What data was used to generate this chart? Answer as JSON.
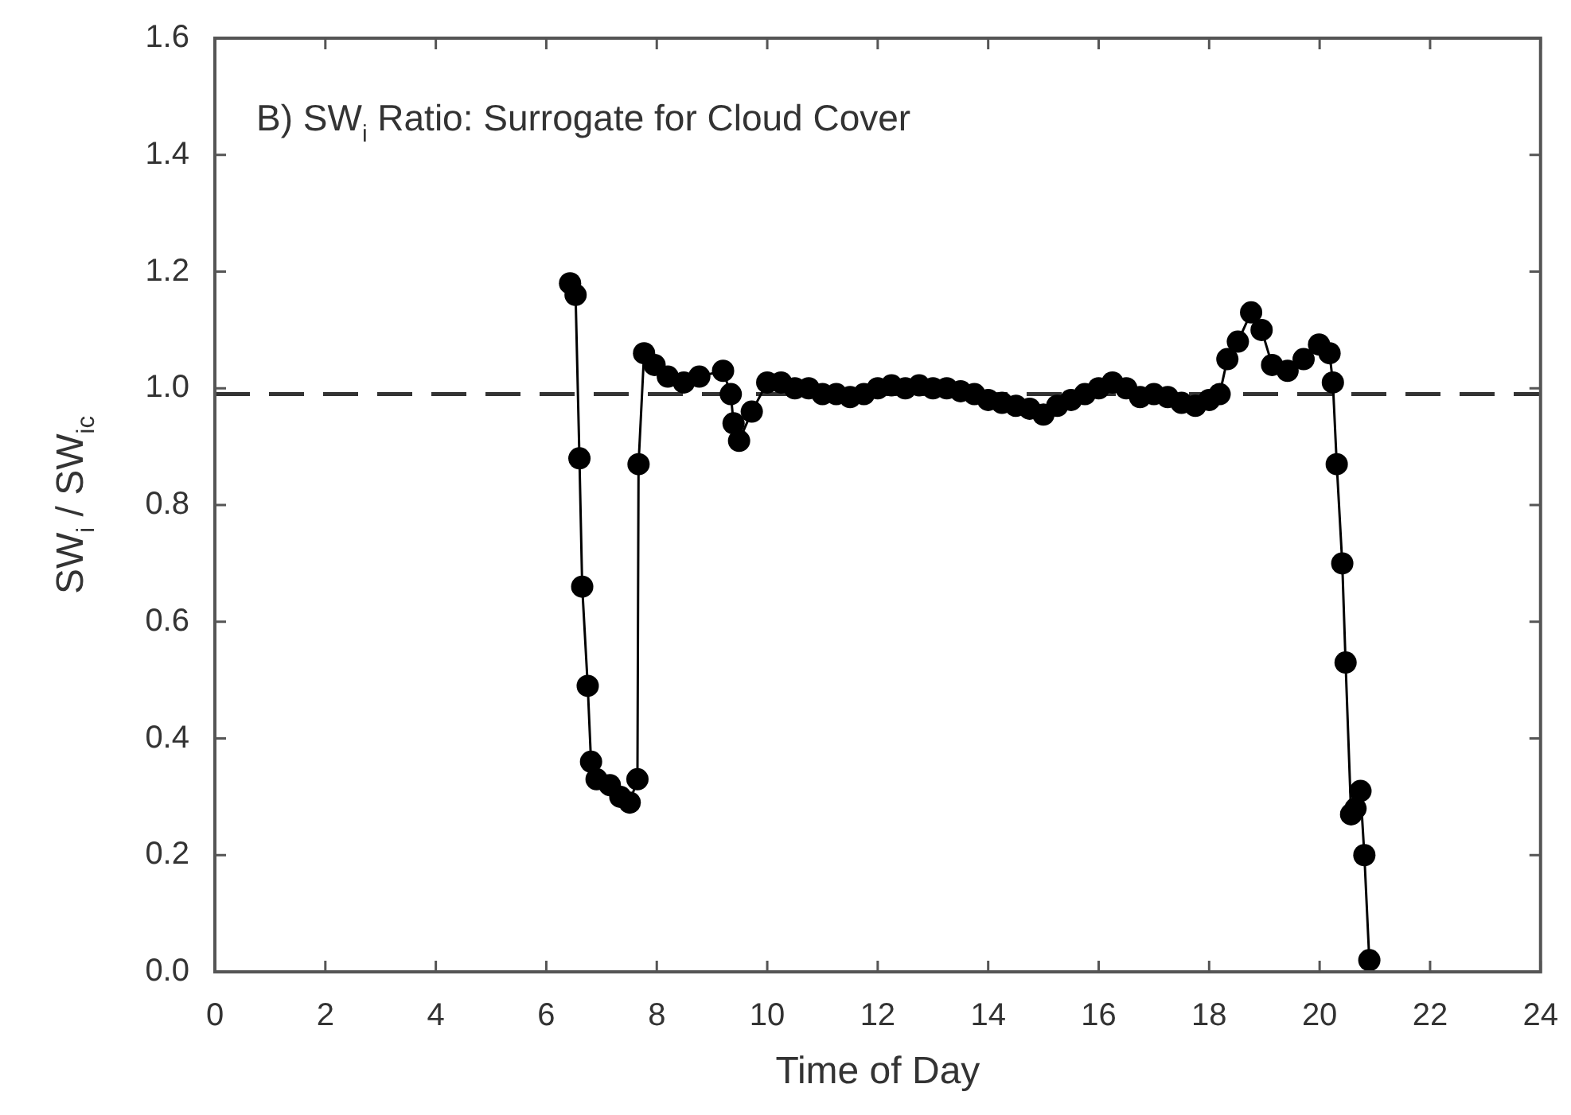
{
  "chart_data": {
    "type": "line",
    "title": "B) SW$_{i}$ Ratio: Surrogate for Cloud Cover",
    "xlabel": "Time of Day",
    "ylabel": "SW$_{i}$ / SW$_{ic}$",
    "xlim": [
      0,
      24
    ],
    "xticks": [
      0,
      2,
      4,
      6,
      8,
      10,
      12,
      14,
      16,
      18,
      20,
      22,
      24
    ],
    "ylim": [
      0,
      1.6
    ],
    "yticks": [
      {
        "value": 0,
        "label": "0.0"
      },
      {
        "value": 0.2,
        "label": "0.2"
      },
      {
        "value": 0.4,
        "label": "0.4"
      },
      {
        "value": 0.6,
        "label": "0.6"
      },
      {
        "value": 0.8,
        "label": "0.8"
      },
      {
        "value": 1,
        "label": "1.0"
      },
      {
        "value": 1.2,
        "label": "1.2"
      },
      {
        "value": 1.4,
        "label": "1.4"
      },
      {
        "value": 1.6,
        "label": "1.6"
      }
    ],
    "marker": "circle",
    "line_style": "solid",
    "legend": false,
    "ref_lines": [
      {
        "axis": "y",
        "value": 0.99,
        "color": "#333333",
        "line_style": "dashed"
      }
    ],
    "series": [
      {
        "color": "#000000",
        "x": [
          6.43,
          6.53,
          6.6,
          6.65,
          6.75,
          6.81,
          6.91,
          7.15,
          7.34,
          7.51,
          7.65,
          7.67,
          7.77,
          7.96,
          8.2,
          8.49,
          8.77,
          9.2,
          9.34,
          9.39,
          9.49,
          9.72,
          10.0,
          10.25,
          10.5,
          10.75,
          11.0,
          11.25,
          11.5,
          11.75,
          12.0,
          12.25,
          12.5,
          12.75,
          13.0,
          13.25,
          13.5,
          13.75,
          14.0,
          14.25,
          14.5,
          14.75,
          15.0,
          15.25,
          15.5,
          15.75,
          16.0,
          16.25,
          16.5,
          16.75,
          17.0,
          17.25,
          17.5,
          17.75,
          18.0,
          18.19,
          18.33,
          18.52,
          18.76,
          18.95,
          19.14,
          19.42,
          19.71,
          19.99,
          20.18,
          20.24,
          20.31,
          20.41,
          20.47,
          20.57,
          20.65,
          20.74,
          20.81,
          20.9
        ],
        "values": [
          1.18,
          1.16,
          0.88,
          0.66,
          0.49,
          0.36,
          0.33,
          0.32,
          0.3,
          0.29,
          0.33,
          0.87,
          1.06,
          1.04,
          1.02,
          1.01,
          1.02,
          1.03,
          0.99,
          0.94,
          0.91,
          0.96,
          1.01,
          1.01,
          1.0,
          1.0,
          0.99,
          0.99,
          0.985,
          0.99,
          1.0,
          1.005,
          1.0,
          1.005,
          1.0,
          1.0,
          0.995,
          0.99,
          0.98,
          0.975,
          0.97,
          0.965,
          0.955,
          0.97,
          0.98,
          0.99,
          1.0,
          1.01,
          1.0,
          0.985,
          0.99,
          0.985,
          0.975,
          0.97,
          0.98,
          0.99,
          1.05,
          1.08,
          1.13,
          1.1,
          1.04,
          1.03,
          1.05,
          1.075,
          1.06,
          1.01,
          0.87,
          0.7,
          0.53,
          0.27,
          0.28,
          0.31,
          0.2,
          0.02
        ]
      }
    ]
  }
}
